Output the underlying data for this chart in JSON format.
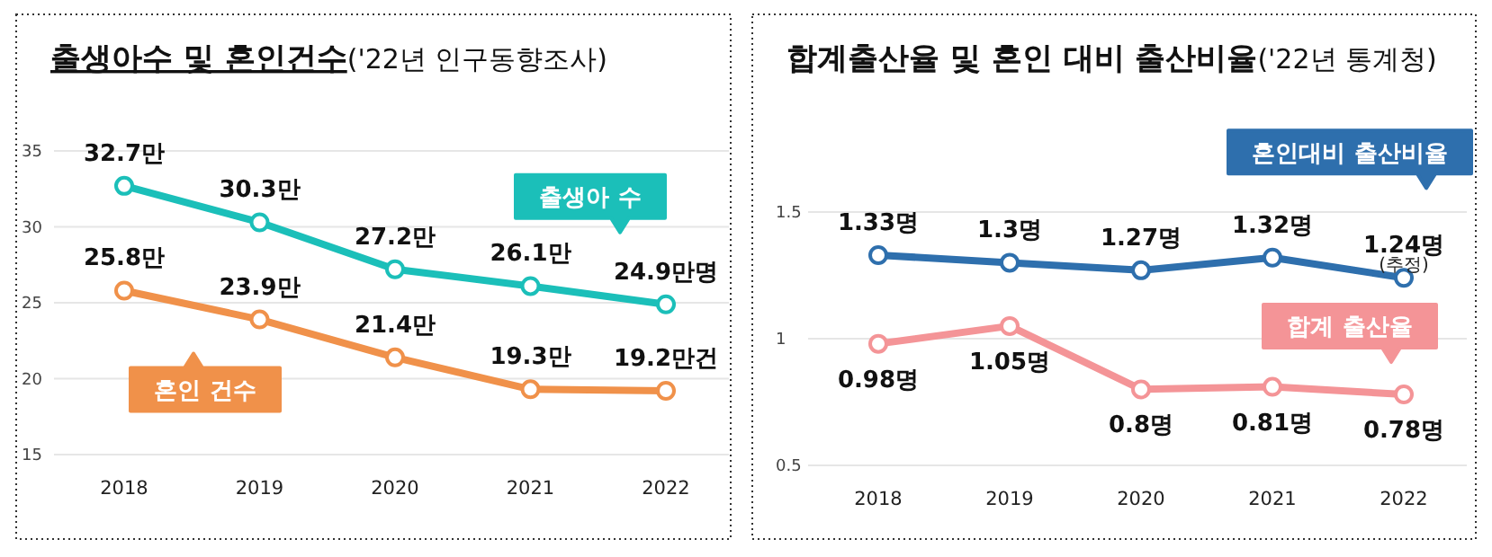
{
  "chart_data": [
    {
      "type": "line",
      "title": "출생아수 및 혼인건수",
      "subtitle": "('22년 인구동향조사)",
      "categories": [
        "2018",
        "2019",
        "2020",
        "2021",
        "2022"
      ],
      "ylim": [
        15,
        35
      ],
      "yticks": [
        15,
        20,
        25,
        30,
        35
      ],
      "grid": "y",
      "marker": "circle",
      "legend": "top right",
      "series": [
        {
          "name": "출생아 수",
          "color": "#1bbfb9",
          "values": [
            32.7,
            30.3,
            27.2,
            26.1,
            24.9
          ],
          "value_labels": [
            "32.7만",
            "30.3만",
            "27.2만",
            "26.1만",
            "24.9만명"
          ]
        },
        {
          "name": "혼인 건수",
          "color": "#f0914a",
          "values": [
            25.8,
            23.9,
            21.4,
            19.3,
            19.2
          ],
          "value_labels": [
            "25.8만",
            "23.9만",
            "21.4만",
            "19.3만",
            "19.2만건"
          ]
        }
      ]
    },
    {
      "type": "line",
      "title": "합계출산율 및 혼인 대비 출산비율",
      "subtitle": "('22년 통계청)",
      "categories": [
        "2018",
        "2019",
        "2020",
        "2021",
        "2022"
      ],
      "ylim": [
        0.5,
        1.5
      ],
      "yticks": [
        0.5,
        1,
        1.5
      ],
      "grid": "y",
      "marker": "circle",
      "legend": "top right",
      "annotations": [
        {
          "text": "(추정)",
          "x": "2022",
          "y": 1.24
        }
      ],
      "series": [
        {
          "name": "혼인대비 출산비율",
          "color": "#2e6fad",
          "values": [
            1.33,
            1.3,
            1.27,
            1.32,
            1.24
          ],
          "value_labels": [
            "1.33명",
            "1.3명",
            "1.27명",
            "1.32명",
            "1.24명"
          ]
        },
        {
          "name": "합계 출산율",
          "color": "#f49497",
          "values": [
            0.98,
            1.05,
            0.8,
            0.81,
            0.78
          ],
          "value_labels": [
            "0.98명",
            "1.05명",
            "0.8명",
            "0.81명",
            "0.78명"
          ]
        }
      ]
    }
  ]
}
